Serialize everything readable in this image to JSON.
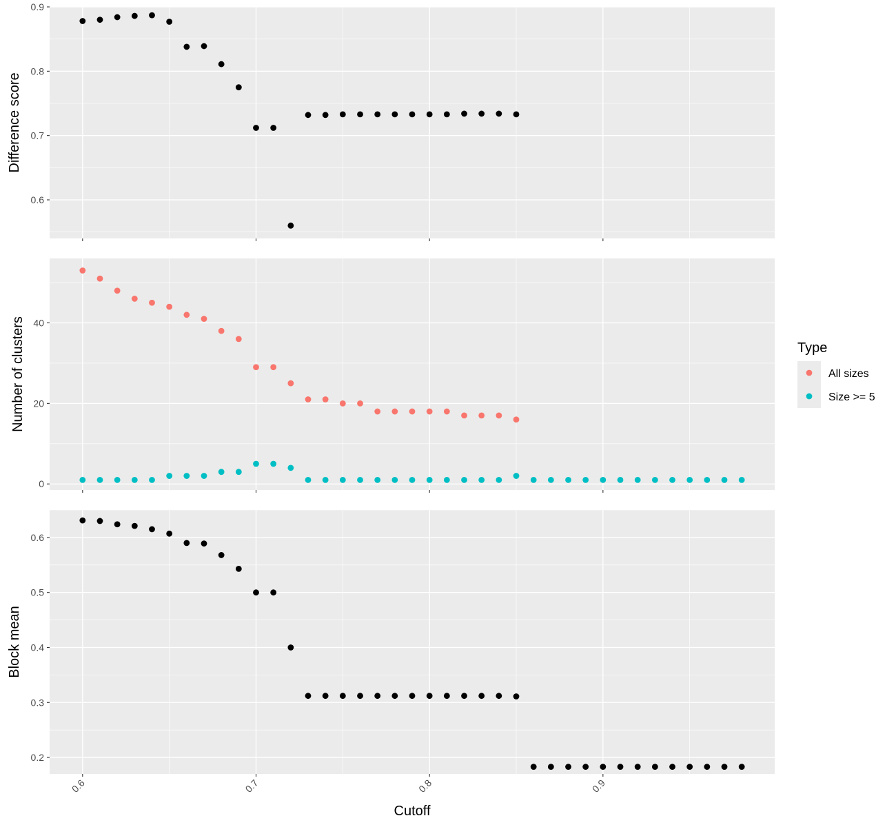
{
  "chart_data": {
    "type": "scatter",
    "xlabel": "Cutoff",
    "x_ticks": [
      "0.6",
      "0.7",
      "0.8",
      "0.9"
    ],
    "xlim": [
      0.581,
      0.999
    ],
    "legend": {
      "title": "Type",
      "position": "right",
      "entries": [
        {
          "label": "All sizes",
          "color": "#F8766D"
        },
        {
          "label": "Size >= 5",
          "color": "#00BFC4"
        }
      ]
    },
    "panels": [
      {
        "ylabel": "Difference score",
        "ylim": [
          0.54,
          0.9
        ],
        "y_ticks": [
          "0.6",
          "0.7",
          "0.8",
          "0.9"
        ],
        "series": [
          {
            "color": "#000000",
            "x": [
              0.6,
              0.61,
              0.62,
              0.63,
              0.64,
              0.65,
              0.66,
              0.67,
              0.68,
              0.69,
              0.7,
              0.71,
              0.72,
              0.73,
              0.74,
              0.75,
              0.76,
              0.77,
              0.78,
              0.79,
              0.8,
              0.81,
              0.82,
              0.83,
              0.84,
              0.85
            ],
            "y": [
              0.878,
              0.88,
              0.884,
              0.886,
              0.887,
              0.877,
              0.838,
              0.839,
              0.811,
              0.775,
              0.712,
              0.712,
              0.56,
              0.732,
              0.732,
              0.733,
              0.733,
              0.733,
              0.733,
              0.733,
              0.733,
              0.733,
              0.734,
              0.734,
              0.734,
              0.733
            ]
          }
        ]
      },
      {
        "ylabel": "Number of clusters",
        "ylim": [
          -1.5,
          56
        ],
        "y_ticks": [
          "0",
          "20",
          "40"
        ],
        "series": [
          {
            "name": "All sizes",
            "color": "#F8766D",
            "x": [
              0.6,
              0.61,
              0.62,
              0.63,
              0.64,
              0.65,
              0.66,
              0.67,
              0.68,
              0.69,
              0.7,
              0.71,
              0.72,
              0.73,
              0.74,
              0.75,
              0.76,
              0.77,
              0.78,
              0.79,
              0.8,
              0.81,
              0.82,
              0.83,
              0.84,
              0.85
            ],
            "y": [
              53,
              51,
              48,
              46,
              45,
              44,
              42,
              41,
              38,
              36,
              29,
              29,
              25,
              21,
              21,
              20,
              20,
              18,
              18,
              18,
              18,
              18,
              17,
              17,
              17,
              16
            ]
          },
          {
            "name": "Size >= 5",
            "color": "#00BFC4",
            "x": [
              0.6,
              0.61,
              0.62,
              0.63,
              0.64,
              0.65,
              0.66,
              0.67,
              0.68,
              0.69,
              0.7,
              0.71,
              0.72,
              0.73,
              0.74,
              0.75,
              0.76,
              0.77,
              0.78,
              0.79,
              0.8,
              0.81,
              0.82,
              0.83,
              0.84,
              0.85,
              0.86,
              0.87,
              0.88,
              0.89,
              0.9,
              0.91,
              0.92,
              0.93,
              0.94,
              0.95,
              0.96,
              0.97,
              0.98
            ],
            "y": [
              1,
              1,
              1,
              1,
              1,
              2,
              2,
              2,
              3,
              3,
              5,
              5,
              4,
              1,
              1,
              1,
              1,
              1,
              1,
              1,
              1,
              1,
              1,
              1,
              1,
              2,
              1,
              1,
              1,
              1,
              1,
              1,
              1,
              1,
              1,
              1,
              1,
              1,
              1
            ]
          }
        ]
      },
      {
        "ylabel": "Block mean",
        "ylim": [
          0.17,
          0.65
        ],
        "y_ticks": [
          "0.2",
          "0.3",
          "0.4",
          "0.5",
          "0.6"
        ],
        "series": [
          {
            "color": "#000000",
            "x": [
              0.6,
              0.61,
              0.62,
              0.63,
              0.64,
              0.65,
              0.66,
              0.67,
              0.68,
              0.69,
              0.7,
              0.71,
              0.72,
              0.73,
              0.74,
              0.75,
              0.76,
              0.77,
              0.78,
              0.79,
              0.8,
              0.81,
              0.82,
              0.83,
              0.84,
              0.85,
              0.86,
              0.87,
              0.88,
              0.89,
              0.9,
              0.91,
              0.92,
              0.93,
              0.94,
              0.95,
              0.96,
              0.97,
              0.98
            ],
            "y": [
              0.631,
              0.63,
              0.624,
              0.621,
              0.615,
              0.607,
              0.59,
              0.589,
              0.568,
              0.543,
              0.5,
              0.5,
              0.4,
              0.312,
              0.312,
              0.312,
              0.312,
              0.312,
              0.312,
              0.312,
              0.312,
              0.312,
              0.312,
              0.312,
              0.312,
              0.311,
              0.183,
              0.183,
              0.183,
              0.183,
              0.183,
              0.183,
              0.183,
              0.183,
              0.183,
              0.183,
              0.183,
              0.183,
              0.183
            ]
          }
        ]
      }
    ]
  }
}
